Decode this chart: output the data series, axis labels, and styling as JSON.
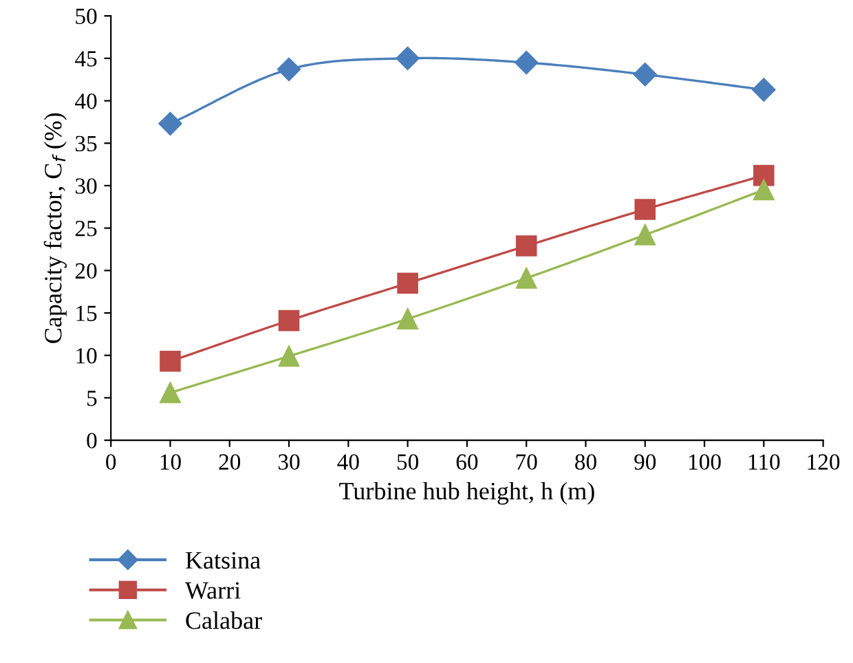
{
  "chart_data": {
    "type": "line",
    "xlabel": "Turbine hub height, h (m)",
    "ylabel": "Capacity factor, C$_{f}$ (%)",
    "x": [
      10,
      30,
      50,
      70,
      90,
      110
    ],
    "series": [
      {
        "name": "Katsina",
        "color": "#4a7ebb",
        "marker": "diamond",
        "values": [
          37.3,
          43.7,
          45.0,
          44.5,
          43.1,
          41.3
        ]
      },
      {
        "name": "Warri",
        "color": "#be4b48",
        "marker": "square",
        "values": [
          9.3,
          14.1,
          18.5,
          22.9,
          27.2,
          31.2
        ]
      },
      {
        "name": "Calabar",
        "color": "#98b954",
        "marker": "triangle",
        "values": [
          5.6,
          9.9,
          14.3,
          19.1,
          24.2,
          29.5
        ]
      }
    ],
    "xlim": [
      0,
      120
    ],
    "xticks": [
      0,
      10,
      20,
      30,
      40,
      50,
      60,
      70,
      80,
      90,
      100,
      110,
      120
    ],
    "ylim": [
      0,
      50
    ],
    "yticks": [
      0,
      5,
      10,
      15,
      20,
      25,
      30,
      35,
      40,
      45,
      50
    ],
    "grid": false,
    "legend": "bottom left",
    "line_style": "solid"
  }
}
